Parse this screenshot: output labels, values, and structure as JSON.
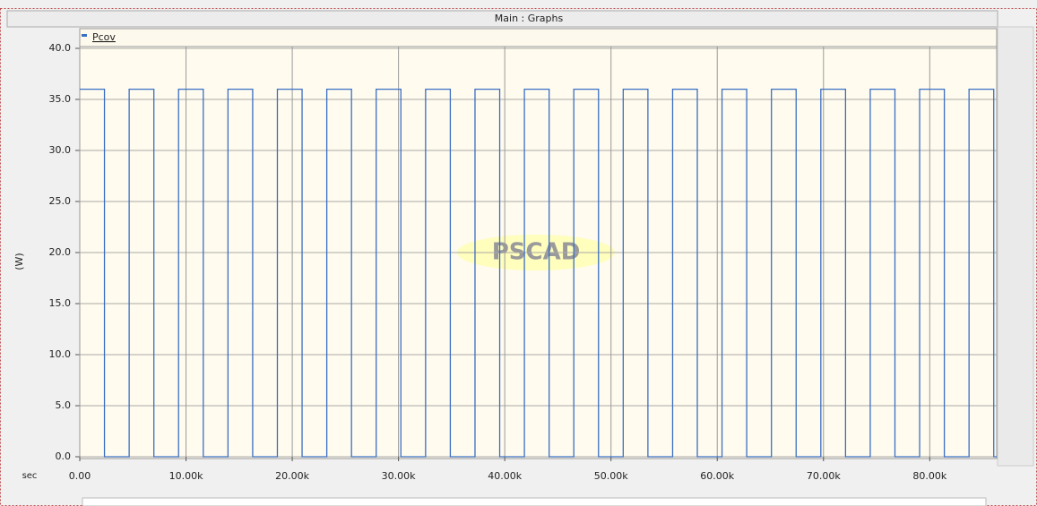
{
  "chart_data": {
    "type": "line",
    "title": "Main : Graphs",
    "y_label": "(W)",
    "x_label": "sec",
    "watermark": "PSCAD",
    "x": [
      0,
      2325,
      2325,
      4650,
      4650,
      6975,
      6975,
      9300,
      9300,
      11625,
      11625,
      13950,
      13950,
      16275,
      16275,
      18600,
      18600,
      20925,
      20925,
      23250,
      23250,
      25575,
      25575,
      27900,
      27900,
      30225,
      30225,
      32550,
      32550,
      34875,
      34875,
      37200,
      37200,
      39525,
      39525,
      41850,
      41850,
      44175,
      44175,
      46500,
      46500,
      48825,
      48825,
      51150,
      51150,
      53475,
      53475,
      55800,
      55800,
      58125,
      58125,
      60450,
      60450,
      62775,
      62775,
      65100,
      65100,
      67425,
      67425,
      69750,
      69750,
      72075,
      72075,
      74400,
      74400,
      76725,
      76725,
      79050,
      79050,
      81375,
      81375,
      83700,
      83700,
      86025,
      86025,
      86300
    ],
    "series": [
      {
        "name": "Pcov",
        "color": "#3a6fc4",
        "values": [
          36,
          36,
          0,
          0,
          36,
          36,
          0,
          0,
          36,
          36,
          0,
          0,
          36,
          36,
          0,
          0,
          36,
          36,
          0,
          0,
          36,
          36,
          0,
          0,
          36,
          36,
          0,
          0,
          36,
          36,
          0,
          0,
          36,
          36,
          0,
          0,
          36,
          36,
          0,
          0,
          36,
          36,
          0,
          0,
          36,
          36,
          0,
          0,
          36,
          36,
          0,
          0,
          36,
          36,
          0,
          0,
          36,
          36,
          0,
          0,
          36,
          36,
          0,
          0,
          36,
          36,
          0,
          0,
          36,
          36,
          0,
          0,
          36,
          36,
          0,
          0
        ]
      }
    ],
    "xlim": [
      0,
      86300
    ],
    "ylim": [
      0,
      40
    ],
    "xticks": [
      {
        "value": 0,
        "label": "0.00"
      },
      {
        "value": 10000,
        "label": "10.00k"
      },
      {
        "value": 20000,
        "label": "20.00k"
      },
      {
        "value": 30000,
        "label": "30.00k"
      },
      {
        "value": 40000,
        "label": "40.00k"
      },
      {
        "value": 50000,
        "label": "50.00k"
      },
      {
        "value": 60000,
        "label": "60.00k"
      },
      {
        "value": 70000,
        "label": "70.00k"
      },
      {
        "value": 80000,
        "label": "80.00k"
      }
    ],
    "yticks": [
      {
        "value": 0,
        "label": "0.0"
      },
      {
        "value": 5,
        "label": "5.0"
      },
      {
        "value": 10,
        "label": "10.0"
      },
      {
        "value": 15,
        "label": "15.0"
      },
      {
        "value": 20,
        "label": "20.0"
      },
      {
        "value": 25,
        "label": "25.0"
      },
      {
        "value": 30,
        "label": "30.0"
      },
      {
        "value": 35,
        "label": "35.0"
      },
      {
        "value": 40,
        "label": "40.0"
      }
    ],
    "grid": true
  }
}
